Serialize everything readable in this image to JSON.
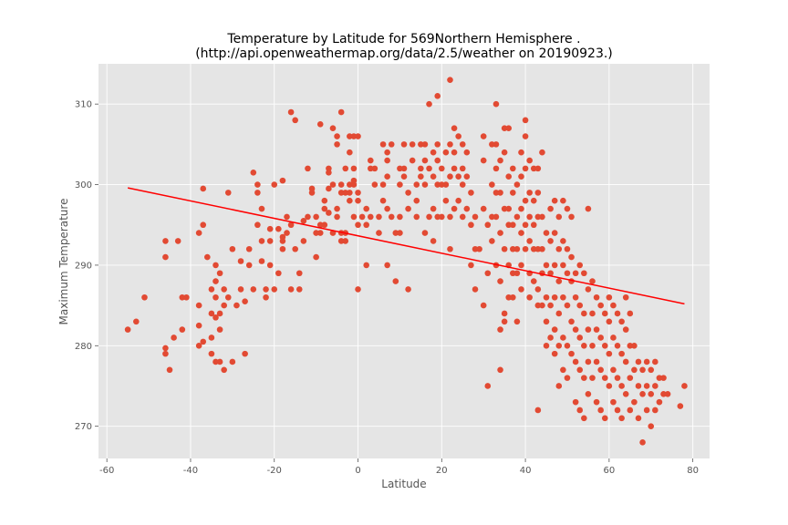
{
  "chart_data": {
    "type": "scatter",
    "title_line1": "Temperature by Latitude for 569Northern Hemisphere .",
    "title_line2": "(http://api.openweathermap.org/data/2.5/weather on 20190923.)",
    "xlabel": "Latitude",
    "ylabel": "Maximum Temperature",
    "xlim": [
      -62,
      84
    ],
    "ylim": [
      266,
      315
    ],
    "x_ticks": [
      -60,
      -40,
      -20,
      0,
      20,
      40,
      60,
      80
    ],
    "y_ticks": [
      270,
      280,
      290,
      300,
      310
    ],
    "grid": true,
    "colors": {
      "background": "#e5e5e5",
      "points": "#e24a33",
      "trend_line": "#ff0000"
    },
    "trend_line": {
      "x": [
        -55,
        78
      ],
      "y": [
        299.6,
        285.2
      ]
    },
    "points": [
      [
        -55,
        282
      ],
      [
        -53,
        283
      ],
      [
        -51,
        286
      ],
      [
        -46,
        291
      ],
      [
        -46,
        279.7
      ],
      [
        -46,
        279
      ],
      [
        -46,
        293
      ],
      [
        -45,
        277
      ],
      [
        -44,
        281
      ],
      [
        -43,
        293
      ],
      [
        -42,
        282
      ],
      [
        -42,
        286
      ],
      [
        -41,
        286
      ],
      [
        -38,
        285
      ],
      [
        -38,
        280
      ],
      [
        -38,
        282.5
      ],
      [
        -38,
        294
      ],
      [
        -37,
        280.5
      ],
      [
        -37,
        295
      ],
      [
        -37,
        299.5
      ],
      [
        -36,
        291
      ],
      [
        -35,
        287
      ],
      [
        -35,
        281
      ],
      [
        -35,
        284
      ],
      [
        -35,
        279
      ],
      [
        -34,
        278
      ],
      [
        -34,
        283.5
      ],
      [
        -34,
        286
      ],
      [
        -34,
        288
      ],
      [
        -34,
        290
      ],
      [
        -33,
        289
      ],
      [
        -33,
        284
      ],
      [
        -33,
        282
      ],
      [
        -33,
        278
      ],
      [
        -32,
        277
      ],
      [
        -32,
        287
      ],
      [
        -32,
        285
      ],
      [
        -31,
        299
      ],
      [
        -31,
        286
      ],
      [
        -30,
        292
      ],
      [
        -30,
        278
      ],
      [
        -29,
        285
      ],
      [
        -28,
        287
      ],
      [
        -28,
        290.5
      ],
      [
        -27,
        279
      ],
      [
        -27,
        285.5
      ],
      [
        -26,
        292
      ],
      [
        -26,
        290
      ],
      [
        -25,
        301.5
      ],
      [
        -25,
        287
      ],
      [
        -24,
        299
      ],
      [
        -24,
        300
      ],
      [
        -24,
        295
      ],
      [
        -23,
        297
      ],
      [
        -23,
        290.5
      ],
      [
        -23,
        293
      ],
      [
        -22,
        286
      ],
      [
        -22,
        287
      ],
      [
        -21,
        290
      ],
      [
        -21,
        293
      ],
      [
        -21,
        294.5
      ],
      [
        -20,
        300
      ],
      [
        -20,
        287
      ],
      [
        -19,
        294.5
      ],
      [
        -19,
        289
      ],
      [
        -18,
        293
      ],
      [
        -18,
        292
      ],
      [
        -18,
        293.5
      ],
      [
        -18,
        300.5
      ],
      [
        -17,
        294
      ],
      [
        -17,
        296
      ],
      [
        -16,
        309
      ],
      [
        -16,
        287
      ],
      [
        -16,
        295
      ],
      [
        -15,
        308
      ],
      [
        -15,
        292
      ],
      [
        -14,
        289
      ],
      [
        -14,
        287
      ],
      [
        -13,
        293
      ],
      [
        -13,
        295.5
      ],
      [
        -12,
        302
      ],
      [
        -12,
        296
      ],
      [
        -11,
        299
      ],
      [
        -11,
        299.5
      ],
      [
        -10,
        291
      ],
      [
        -10,
        294
      ],
      [
        -10,
        296
      ],
      [
        -9,
        307.5
      ],
      [
        -9,
        295
      ],
      [
        -9,
        294
      ],
      [
        -8,
        297
      ],
      [
        -8,
        295
      ],
      [
        -8,
        298
      ],
      [
        -7,
        302
      ],
      [
        -7,
        301.5
      ],
      [
        -7,
        296.5
      ],
      [
        -7,
        299.5
      ],
      [
        -6,
        294
      ],
      [
        -6,
        300
      ],
      [
        -6,
        307
      ],
      [
        -5,
        305
      ],
      [
        -5,
        306
      ],
      [
        -5,
        297
      ],
      [
        -5,
        296
      ],
      [
        -4,
        299
      ],
      [
        -4,
        300
      ],
      [
        -4,
        309
      ],
      [
        -4,
        294
      ],
      [
        -4,
        293
      ],
      [
        -3,
        302
      ],
      [
        -3,
        294
      ],
      [
        -3,
        293
      ],
      [
        -3,
        299
      ],
      [
        -2,
        306
      ],
      [
        -2,
        299
      ],
      [
        -2,
        304
      ],
      [
        -2,
        300
      ],
      [
        -2,
        298
      ],
      [
        -1,
        306
      ],
      [
        -1,
        302
      ],
      [
        -1,
        296
      ],
      [
        -1,
        300
      ],
      [
        -1,
        300.5
      ],
      [
        0,
        287
      ],
      [
        0,
        306
      ],
      [
        0,
        295
      ],
      [
        0,
        299
      ],
      [
        0,
        298
      ],
      [
        1,
        296
      ],
      [
        2,
        297
      ],
      [
        2,
        295
      ],
      [
        2,
        290
      ],
      [
        3,
        303
      ],
      [
        3,
        302
      ],
      [
        3,
        296
      ],
      [
        4,
        300
      ],
      [
        4,
        302
      ],
      [
        5,
        296
      ],
      [
        5,
        294
      ],
      [
        6,
        305
      ],
      [
        6,
        300
      ],
      [
        6,
        298
      ],
      [
        7,
        304
      ],
      [
        7,
        303
      ],
      [
        7,
        301
      ],
      [
        7,
        297
      ],
      [
        7,
        290
      ],
      [
        8,
        305
      ],
      [
        8,
        296
      ],
      [
        9,
        294
      ],
      [
        9,
        288
      ],
      [
        10,
        302
      ],
      [
        10,
        300
      ],
      [
        10,
        296
      ],
      [
        10,
        294
      ],
      [
        11,
        305
      ],
      [
        11,
        302
      ],
      [
        11,
        301
      ],
      [
        12,
        299
      ],
      [
        12,
        297
      ],
      [
        12,
        287
      ],
      [
        13,
        305
      ],
      [
        13,
        303
      ],
      [
        14,
        300
      ],
      [
        14,
        298
      ],
      [
        14,
        296
      ],
      [
        15,
        305
      ],
      [
        15,
        302
      ],
      [
        15,
        301
      ],
      [
        16,
        305
      ],
      [
        16,
        303
      ],
      [
        16,
        300
      ],
      [
        16,
        294
      ],
      [
        17,
        310
      ],
      [
        17,
        302
      ],
      [
        17,
        296
      ],
      [
        18,
        304
      ],
      [
        18,
        301
      ],
      [
        18,
        297
      ],
      [
        18,
        293
      ],
      [
        19,
        311
      ],
      [
        19,
        305
      ],
      [
        19,
        303
      ],
      [
        19,
        300
      ],
      [
        19,
        296
      ],
      [
        20,
        300
      ],
      [
        20,
        296
      ],
      [
        20,
        302
      ],
      [
        21,
        304
      ],
      [
        21,
        300
      ],
      [
        21,
        298
      ],
      [
        22,
        313
      ],
      [
        22,
        305
      ],
      [
        22,
        301
      ],
      [
        22,
        296
      ],
      [
        22,
        292
      ],
      [
        23,
        307
      ],
      [
        23,
        304
      ],
      [
        23,
        302
      ],
      [
        23,
        297
      ],
      [
        24,
        306
      ],
      [
        24,
        301
      ],
      [
        24,
        298
      ],
      [
        25,
        305
      ],
      [
        25,
        302
      ],
      [
        25,
        300
      ],
      [
        25,
        296
      ],
      [
        26,
        304
      ],
      [
        26,
        301
      ],
      [
        26,
        297
      ],
      [
        27,
        299
      ],
      [
        27,
        295
      ],
      [
        27,
        290
      ],
      [
        28,
        296
      ],
      [
        28,
        292
      ],
      [
        28,
        287
      ],
      [
        29,
        292
      ],
      [
        30,
        306
      ],
      [
        30,
        303
      ],
      [
        30,
        297
      ],
      [
        30,
        285
      ],
      [
        31,
        295
      ],
      [
        31,
        289
      ],
      [
        31,
        275
      ],
      [
        32,
        305
      ],
      [
        32,
        300
      ],
      [
        32,
        296
      ],
      [
        32,
        293
      ],
      [
        33,
        310
      ],
      [
        33,
        305
      ],
      [
        33,
        302
      ],
      [
        33,
        299
      ],
      [
        33,
        296
      ],
      [
        33,
        290
      ],
      [
        34,
        303
      ],
      [
        34,
        299
      ],
      [
        34,
        294
      ],
      [
        34,
        288
      ],
      [
        34,
        282
      ],
      [
        34,
        277
      ],
      [
        35,
        307
      ],
      [
        35,
        304
      ],
      [
        35,
        297
      ],
      [
        35,
        292
      ],
      [
        35,
        284
      ],
      [
        35,
        283
      ],
      [
        36,
        307
      ],
      [
        36,
        301
      ],
      [
        36,
        297
      ],
      [
        36,
        295
      ],
      [
        36,
        290
      ],
      [
        36,
        286
      ],
      [
        37,
        302
      ],
      [
        37,
        299
      ],
      [
        37,
        295
      ],
      [
        37,
        292
      ],
      [
        37,
        289
      ],
      [
        37,
        286
      ],
      [
        38,
        300
      ],
      [
        38,
        296
      ],
      [
        38,
        292
      ],
      [
        38,
        289
      ],
      [
        38,
        283
      ],
      [
        39,
        304
      ],
      [
        39,
        301
      ],
      [
        39,
        297
      ],
      [
        39,
        294
      ],
      [
        39,
        290
      ],
      [
        39,
        287
      ],
      [
        40,
        308
      ],
      [
        40,
        306
      ],
      [
        40,
        302
      ],
      [
        40,
        298
      ],
      [
        40,
        295
      ],
      [
        40,
        292
      ],
      [
        41,
        303
      ],
      [
        41,
        299
      ],
      [
        41,
        296
      ],
      [
        41,
        293
      ],
      [
        41,
        289
      ],
      [
        41,
        286
      ],
      [
        42,
        302
      ],
      [
        42,
        298
      ],
      [
        42,
        295
      ],
      [
        42,
        292
      ],
      [
        42,
        288
      ],
      [
        43,
        302
      ],
      [
        43,
        299
      ],
      [
        43,
        296
      ],
      [
        43,
        292
      ],
      [
        43,
        287
      ],
      [
        43,
        285
      ],
      [
        43,
        272
      ],
      [
        44,
        304
      ],
      [
        44,
        296
      ],
      [
        44,
        292
      ],
      [
        44,
        289
      ],
      [
        44,
        285
      ],
      [
        45,
        294
      ],
      [
        45,
        290
      ],
      [
        45,
        286
      ],
      [
        45,
        283
      ],
      [
        45,
        280
      ],
      [
        46,
        297
      ],
      [
        46,
        293
      ],
      [
        46,
        289
      ],
      [
        46,
        285
      ],
      [
        46,
        281
      ],
      [
        47,
        298
      ],
      [
        47,
        294
      ],
      [
        47,
        290
      ],
      [
        47,
        286
      ],
      [
        47,
        282
      ],
      [
        47,
        279
      ],
      [
        48,
        296
      ],
      [
        48,
        292
      ],
      [
        48,
        288
      ],
      [
        48,
        284
      ],
      [
        48,
        280
      ],
      [
        48,
        275
      ],
      [
        49,
        298
      ],
      [
        49,
        293
      ],
      [
        49,
        290
      ],
      [
        49,
        286
      ],
      [
        49,
        281
      ],
      [
        49,
        277
      ],
      [
        50,
        297
      ],
      [
        50,
        292
      ],
      [
        50,
        289
      ],
      [
        50,
        285
      ],
      [
        50,
        280
      ],
      [
        50,
        276
      ],
      [
        51,
        296
      ],
      [
        51,
        291
      ],
      [
        51,
        288
      ],
      [
        51,
        283
      ],
      [
        51,
        279
      ],
      [
        52,
        289
      ],
      [
        52,
        286
      ],
      [
        52,
        282
      ],
      [
        52,
        278
      ],
      [
        52,
        273
      ],
      [
        53,
        290
      ],
      [
        53,
        285
      ],
      [
        53,
        281
      ],
      [
        53,
        277
      ],
      [
        53,
        272
      ],
      [
        54,
        289
      ],
      [
        54,
        284
      ],
      [
        54,
        280
      ],
      [
        54,
        276
      ],
      [
        54,
        271
      ],
      [
        55,
        297
      ],
      [
        55,
        287
      ],
      [
        55,
        282
      ],
      [
        55,
        278
      ],
      [
        55,
        274
      ],
      [
        56,
        288
      ],
      [
        56,
        284
      ],
      [
        56,
        280
      ],
      [
        56,
        276
      ],
      [
        57,
        286
      ],
      [
        57,
        282
      ],
      [
        57,
        278
      ],
      [
        57,
        273
      ],
      [
        58,
        285
      ],
      [
        58,
        281
      ],
      [
        58,
        277
      ],
      [
        58,
        272
      ],
      [
        59,
        284
      ],
      [
        59,
        280
      ],
      [
        59,
        276
      ],
      [
        59,
        271
      ],
      [
        60,
        286
      ],
      [
        60,
        283
      ],
      [
        60,
        279
      ],
      [
        60,
        275
      ],
      [
        61,
        285
      ],
      [
        61,
        281
      ],
      [
        61,
        277
      ],
      [
        61,
        273
      ],
      [
        62,
        284
      ],
      [
        62,
        280
      ],
      [
        62,
        276
      ],
      [
        62,
        272
      ],
      [
        63,
        283
      ],
      [
        63,
        279
      ],
      [
        63,
        275
      ],
      [
        63,
        271
      ],
      [
        64,
        286
      ],
      [
        64,
        282
      ],
      [
        64,
        278
      ],
      [
        64,
        274
      ],
      [
        65,
        284
      ],
      [
        65,
        280
      ],
      [
        65,
        276
      ],
      [
        65,
        272
      ],
      [
        66,
        280
      ],
      [
        66,
        277
      ],
      [
        66,
        273
      ],
      [
        67,
        278
      ],
      [
        67,
        275
      ],
      [
        67,
        271
      ],
      [
        68,
        277
      ],
      [
        68,
        274
      ],
      [
        68,
        268
      ],
      [
        69,
        278
      ],
      [
        69,
        275
      ],
      [
        69,
        272
      ],
      [
        70,
        277
      ],
      [
        70,
        274
      ],
      [
        70,
        270
      ],
      [
        71,
        278
      ],
      [
        71,
        275
      ],
      [
        71,
        272
      ],
      [
        72,
        276
      ],
      [
        72,
        273
      ],
      [
        73,
        276
      ],
      [
        73,
        274
      ],
      [
        74,
        274
      ],
      [
        77,
        272.5
      ],
      [
        78,
        275
      ]
    ]
  }
}
